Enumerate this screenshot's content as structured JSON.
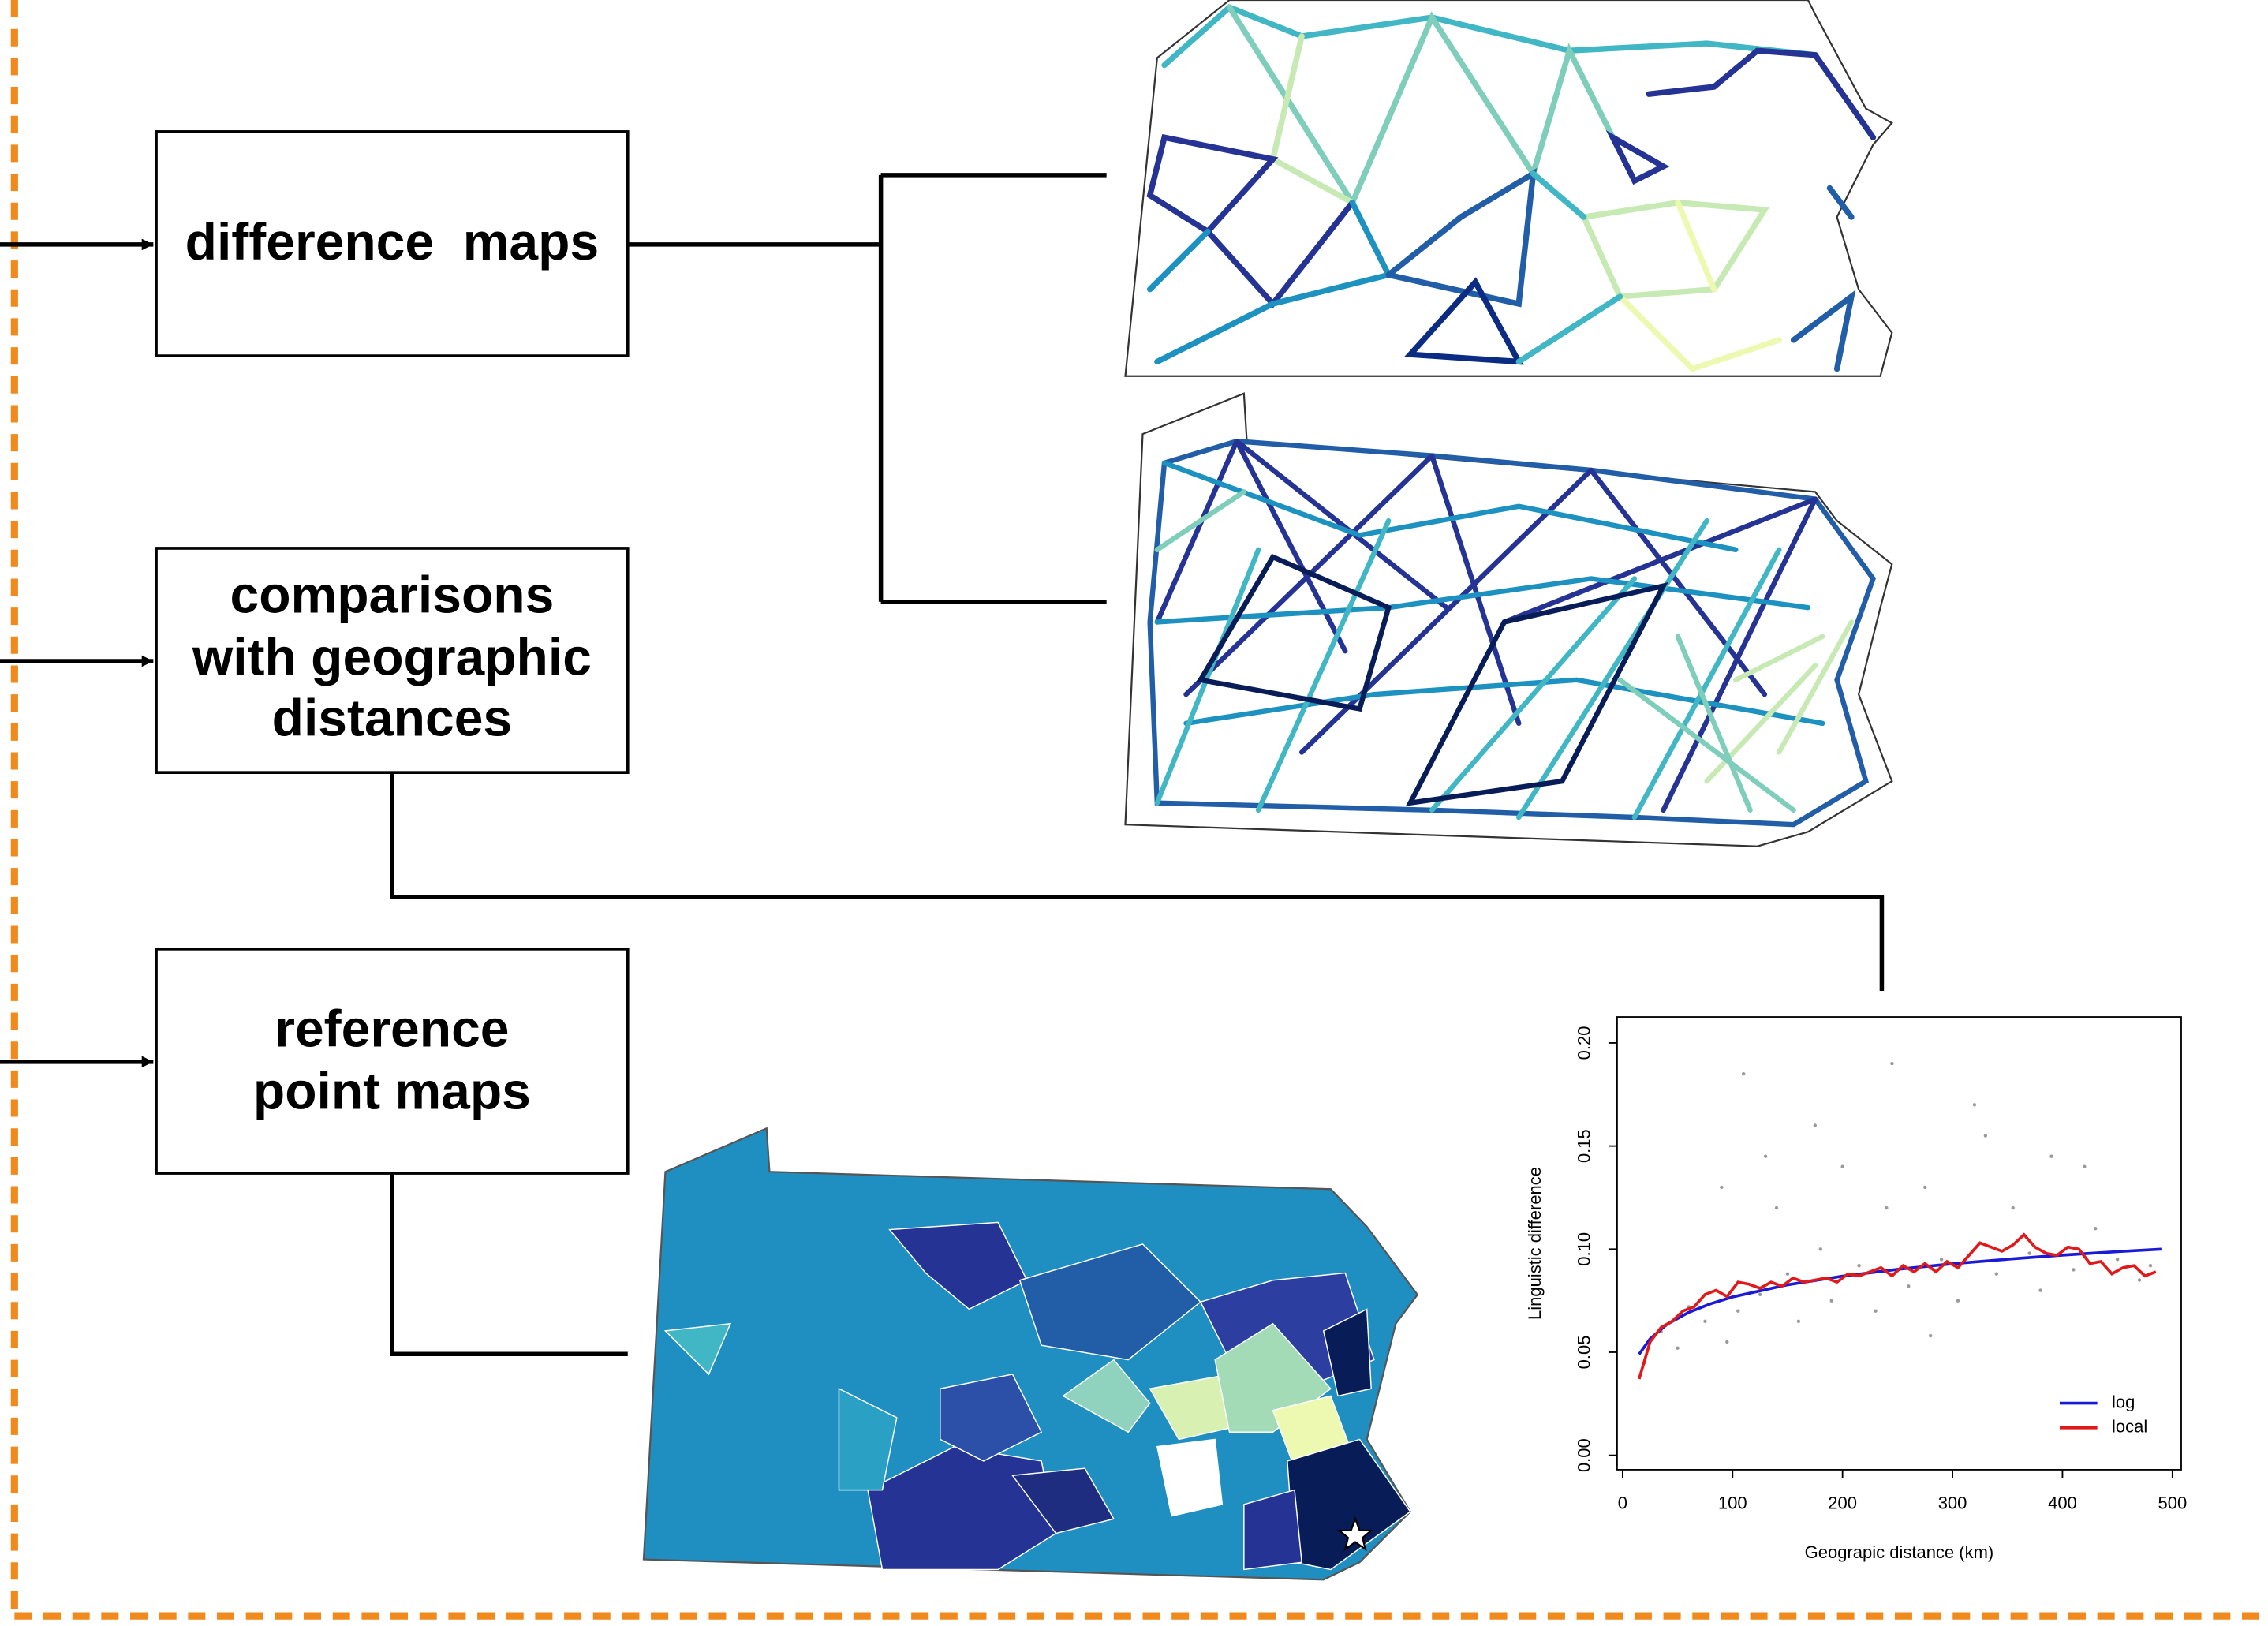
{
  "boxes": [
    {
      "lines": [
        "difference  maps"
      ]
    },
    {
      "lines": [
        "comparisons",
        "with geographic",
        "distances"
      ]
    },
    {
      "lines": [
        "reference",
        "point maps"
      ]
    }
  ],
  "chart_data": {
    "type": "scatter",
    "xlabel": "Geograpic distance (km)",
    "ylabel": "Linguistic difference",
    "xlim": [
      -5,
      508
    ],
    "ylim": [
      -0.007,
      0.2126
    ],
    "xticks": [
      0,
      100,
      200,
      300,
      400,
      500
    ],
    "yticks": [
      {
        "value": 0,
        "label": "0.00"
      },
      {
        "value": 0.05,
        "label": "0.05"
      },
      {
        "value": 0.1,
        "label": "0.10"
      },
      {
        "value": 0.15,
        "label": "0.15"
      },
      {
        "value": 0.2,
        "label": "0.20"
      }
    ],
    "legend": "bottom-right",
    "series": [
      {
        "name": null,
        "kind": "points",
        "color": "#9a9a9a",
        "x": [
          20,
          35,
          50,
          60,
          75,
          90,
          105,
          110,
          125,
          140,
          150,
          160,
          175,
          190,
          200,
          215,
          230,
          245,
          260,
          275,
          290,
          305,
          320,
          340,
          355,
          370,
          390,
          410,
          430,
          450,
          470,
          480,
          95,
          130,
          180,
          240,
          280,
          330,
          380,
          420
        ],
        "values": [
          0.045,
          0.06,
          0.052,
          0.072,
          0.065,
          0.13,
          0.07,
          0.185,
          0.078,
          0.12,
          0.088,
          0.065,
          0.16,
          0.075,
          0.14,
          0.092,
          0.07,
          0.19,
          0.082,
          0.13,
          0.095,
          0.075,
          0.17,
          0.088,
          0.12,
          0.098,
          0.145,
          0.09,
          0.11,
          0.095,
          0.085,
          0.092,
          0.055,
          0.145,
          0.1,
          0.12,
          0.058,
          0.155,
          0.08,
          0.14
        ]
      },
      {
        "name": "log",
        "kind": "line",
        "color": "#1a1ad6",
        "x": [
          15,
          25,
          40,
          60,
          80,
          100,
          150,
          200,
          250,
          300,
          350,
          400,
          450,
          490
        ],
        "values": [
          0.049,
          0.0565,
          0.0634,
          0.0693,
          0.0735,
          0.0768,
          0.0827,
          0.0869,
          0.0902,
          0.0929,
          0.0951,
          0.0971,
          0.0988,
          0.1
        ]
      },
      {
        "name": "local",
        "kind": "line",
        "color": "#e01a1a",
        "x": [
          15,
          25,
          35,
          45,
          55,
          65,
          75,
          85,
          95,
          105,
          115,
          125,
          135,
          145,
          155,
          165,
          175,
          185,
          195,
          205,
          215,
          225,
          235,
          245,
          255,
          265,
          275,
          285,
          295,
          305,
          315,
          325,
          335,
          345,
          355,
          365,
          375,
          385,
          395,
          405,
          415,
          425,
          435,
          445,
          455,
          465,
          475,
          485
        ],
        "values": [
          0.037,
          0.055,
          0.062,
          0.065,
          0.07,
          0.072,
          0.078,
          0.08,
          0.077,
          0.084,
          0.083,
          0.081,
          0.084,
          0.082,
          0.086,
          0.084,
          0.085,
          0.086,
          0.084,
          0.088,
          0.087,
          0.089,
          0.091,
          0.087,
          0.092,
          0.089,
          0.093,
          0.089,
          0.094,
          0.091,
          0.097,
          0.103,
          0.101,
          0.099,
          0.102,
          0.107,
          0.101,
          0.098,
          0.097,
          0.101,
          0.1,
          0.093,
          0.094,
          0.088,
          0.091,
          0.092,
          0.087,
          0.089
        ]
      }
    ]
  }
}
